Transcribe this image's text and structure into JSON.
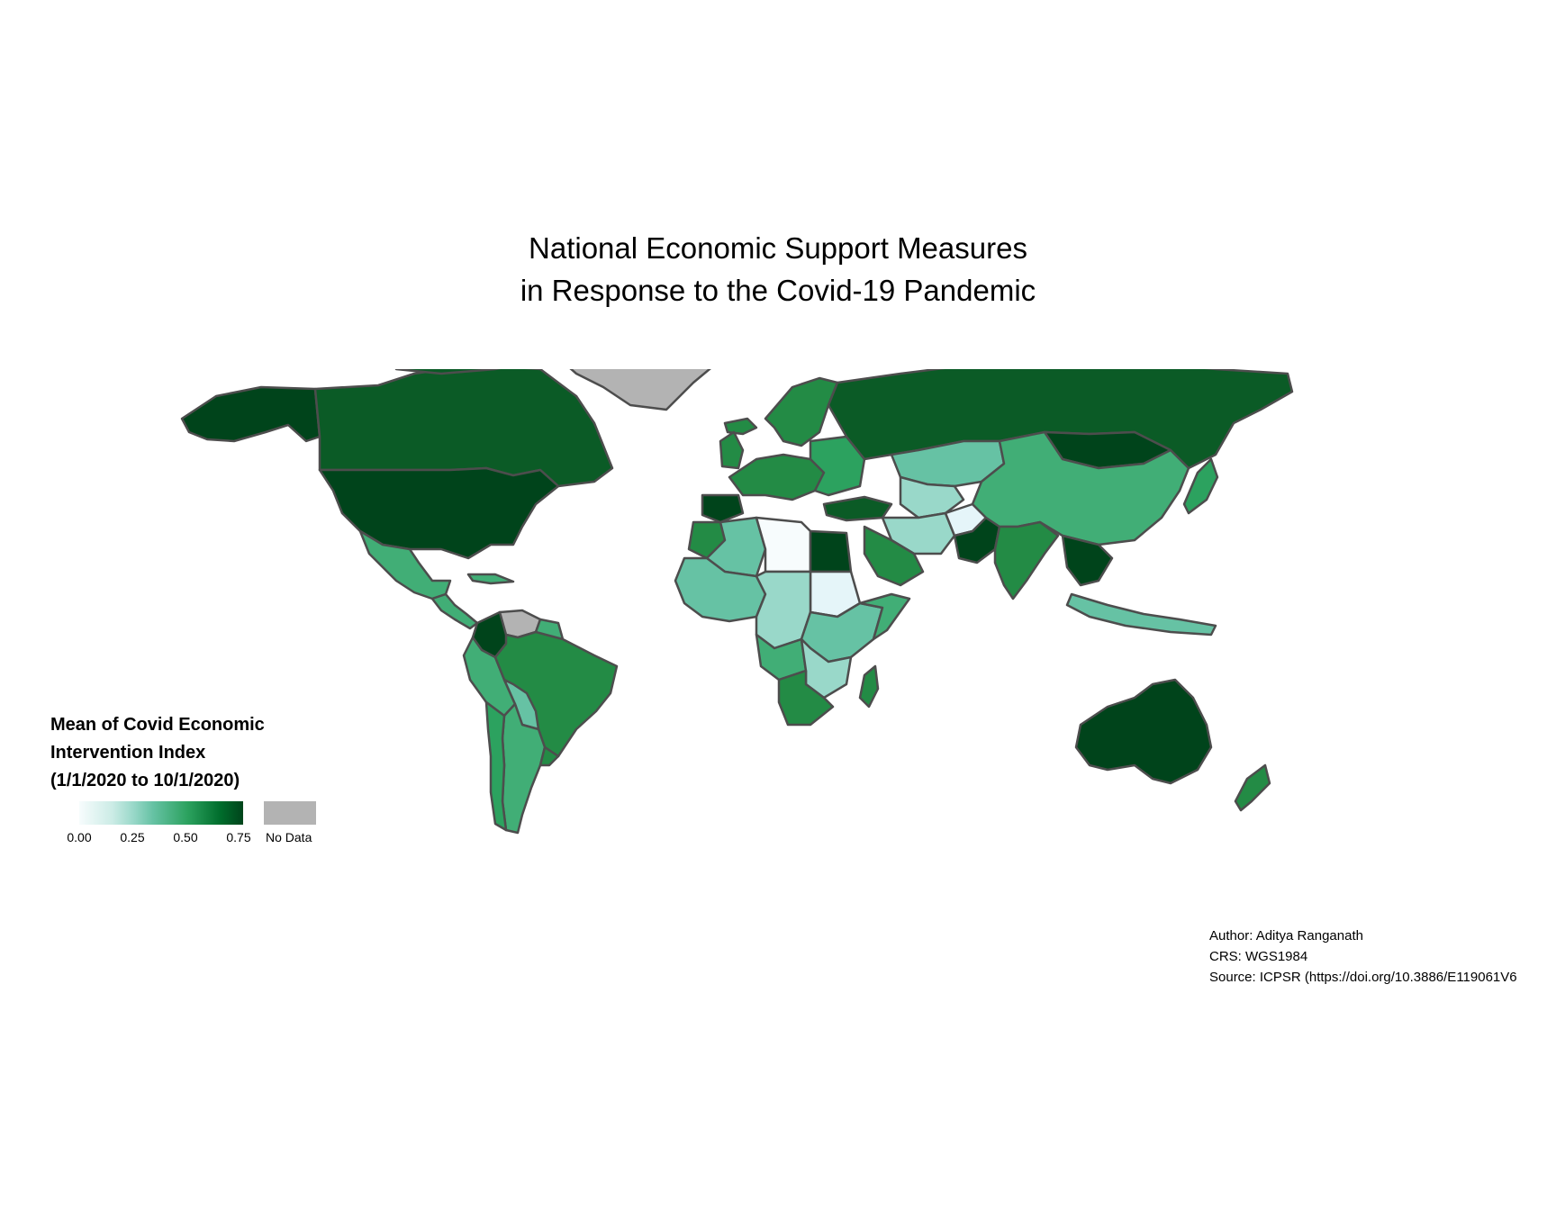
{
  "title": {
    "line1": "National Economic Support Measures",
    "line2": "in Response to the Covid-19 Pandemic"
  },
  "legend": {
    "title_line1": "Mean of Covid Economic",
    "title_line2": "Intervention Index",
    "title_line3": "(1/1/2020 to 10/1/2020)",
    "ticks": [
      "0.00",
      "0.25",
      "0.50",
      "0.75"
    ],
    "no_data_label": "No Data",
    "colors": {
      "low": "#f7fcfd",
      "mid_low": "#99d8c9",
      "mid": "#41ae76",
      "mid_high": "#238b45",
      "high": "#00441b",
      "no_data": "#b3b3b3",
      "border": "#4d4d4d"
    }
  },
  "credits": {
    "author": "Author: Aditya Ranganath",
    "crs": "CRS: WGS1984",
    "source": "Source: ICPSR (https://doi.org/10.3886/E119061V6"
  },
  "map_regions": [
    {
      "name": "Canada",
      "value": 0.72
    },
    {
      "name": "United States",
      "value": 0.78
    },
    {
      "name": "Alaska",
      "value": 0.78
    },
    {
      "name": "Greenland",
      "value": null
    },
    {
      "name": "Mexico",
      "value": 0.38
    },
    {
      "name": "Colombia",
      "value": 0.76
    },
    {
      "name": "Venezuela",
      "value": null
    },
    {
      "name": "Brazil",
      "value": 0.6
    },
    {
      "name": "Peru",
      "value": 0.4
    },
    {
      "name": "Argentina",
      "value": 0.4
    },
    {
      "name": "Chile",
      "value": 0.5
    },
    {
      "name": "Russia",
      "value": 0.7
    },
    {
      "name": "China",
      "value": 0.5
    },
    {
      "name": "Mongolia",
      "value": 0.72
    },
    {
      "name": "Kazakhstan",
      "value": 0.33
    },
    {
      "name": "India",
      "value": 0.55
    },
    {
      "name": "Pakistan",
      "value": 0.72
    },
    {
      "name": "Australia",
      "value": 0.78
    },
    {
      "name": "New Zealand",
      "value": 0.55
    },
    {
      "name": "Libya",
      "value": 0.02
    },
    {
      "name": "Egypt",
      "value": 0.75
    },
    {
      "name": "Sudan",
      "value": 0.1
    },
    {
      "name": "Algeria",
      "value": 0.3
    },
    {
      "name": "Saudi Arabia",
      "value": 0.55
    },
    {
      "name": "South Africa",
      "value": 0.6
    },
    {
      "name": "Madagascar",
      "value": 0.6
    },
    {
      "name": "Angola",
      "value": 0.5
    },
    {
      "name": "Kenya",
      "value": 0.35
    }
  ]
}
